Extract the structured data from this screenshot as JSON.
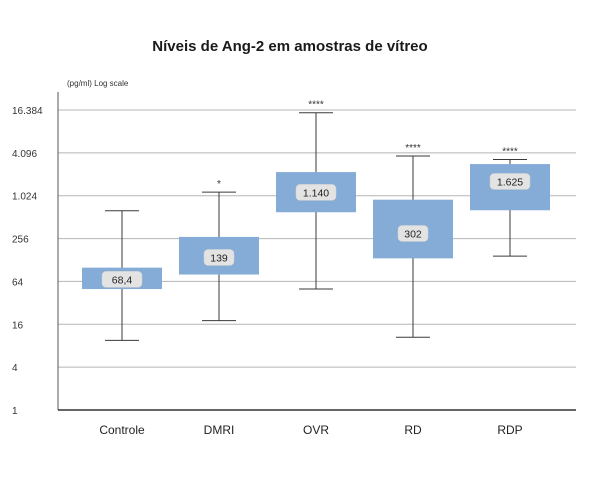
{
  "chart_data": {
    "type": "boxplot",
    "title": "Níveis de Ang-2 em amostras de vítreo",
    "ylabel": "(pg/ml) Log scale",
    "yscale": "log4",
    "ylim": [
      1,
      16384
    ],
    "yticks": [
      {
        "value": 1,
        "label": "1"
      },
      {
        "value": 4,
        "label": "4"
      },
      {
        "value": 16,
        "label": "16"
      },
      {
        "value": 64,
        "label": "64"
      },
      {
        "value": 256,
        "label": "256"
      },
      {
        "value": 1024,
        "label": "1.024"
      },
      {
        "value": 4096,
        "label": "4.096"
      },
      {
        "value": 16384,
        "label": "16.384"
      }
    ],
    "grid": true,
    "box_color": "#85acd6",
    "categories": [
      "Controle",
      "DMRI",
      "OVR",
      "RD",
      "RDP"
    ],
    "boxes": [
      {
        "category": "Controle",
        "min": 9.5,
        "q1": 50,
        "median": 68.4,
        "q3": 100,
        "max": 630,
        "median_label": "68,4",
        "significance": ""
      },
      {
        "category": "DMRI",
        "min": 18,
        "q1": 80,
        "median": 139,
        "q3": 270,
        "max": 1150,
        "median_label": "139",
        "significance": "*"
      },
      {
        "category": "OVR",
        "min": 50,
        "q1": 600,
        "median": 1140,
        "q3": 2200,
        "max": 15000,
        "median_label": "1.140",
        "significance": "****"
      },
      {
        "category": "RD",
        "min": 10.5,
        "q1": 135,
        "median": 302,
        "q3": 900,
        "max": 3700,
        "median_label": "302",
        "significance": "****"
      },
      {
        "category": "RDP",
        "min": 145,
        "q1": 640,
        "median": 1625,
        "q3": 2850,
        "max": 3300,
        "median_label": "1.625",
        "significance": "****"
      }
    ]
  }
}
